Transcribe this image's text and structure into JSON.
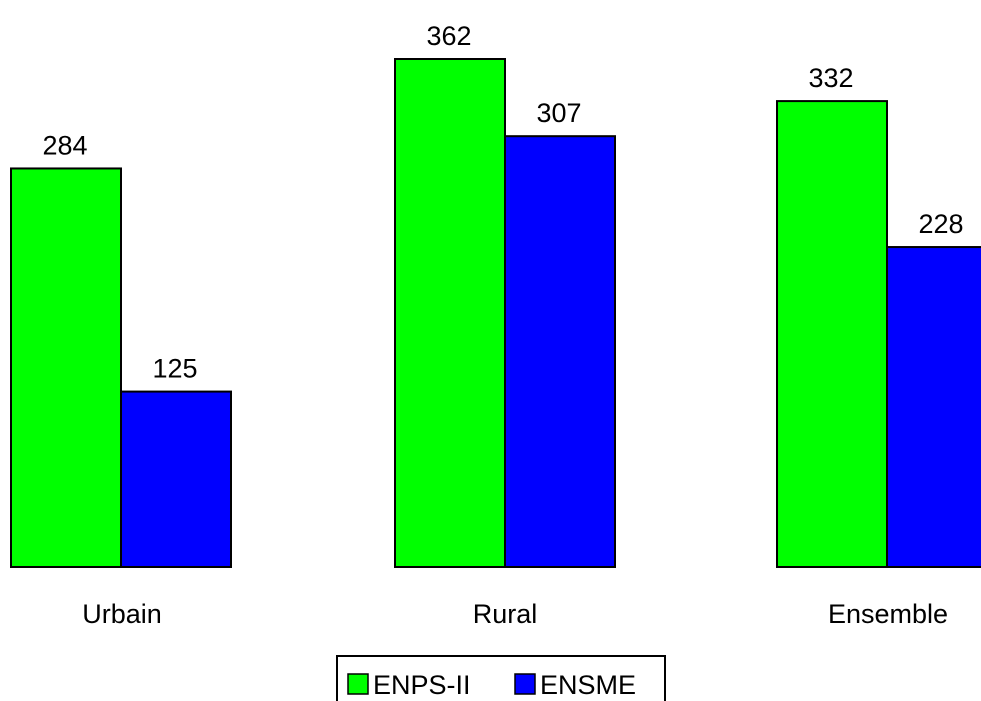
{
  "chart_data": {
    "type": "bar",
    "categories": [
      "Urbain",
      "Rural",
      "Ensemble"
    ],
    "series": [
      {
        "name": "ENPS-II",
        "values": [
          284,
          362,
          332
        ],
        "color": "#00ff00"
      },
      {
        "name": "ENSME",
        "values": [
          125,
          307,
          228
        ],
        "color": "#0000ff"
      }
    ],
    "ylim": [
      0,
      362
    ],
    "grid": false,
    "legend": "bottom",
    "axes_visible": false,
    "data_labels": [
      "284",
      "125",
      "362",
      "307",
      "332",
      "228"
    ]
  }
}
